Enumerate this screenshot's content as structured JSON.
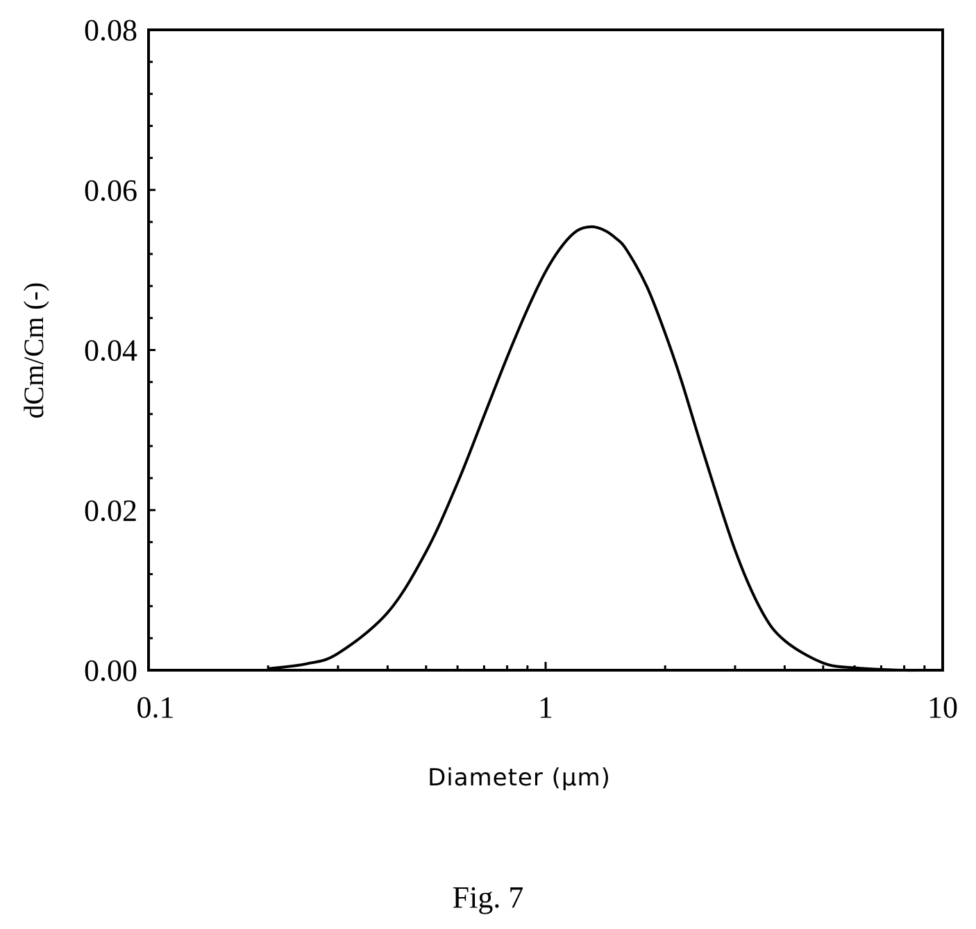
{
  "chart_data": {
    "type": "line",
    "xlabel": "Diameter (μm)",
    "ylabel": "dCm/Cm (-)",
    "xscale": "log",
    "xlim": [
      0.1,
      10
    ],
    "ylim": [
      0,
      0.08
    ],
    "grid": false,
    "legend": "none",
    "x_ticks": [
      {
        "value": 0.1,
        "label": "0.1"
      },
      {
        "value": 1,
        "label": "1"
      },
      {
        "value": 10,
        "label": "10"
      }
    ],
    "y_ticks": [
      {
        "value": 0,
        "label": "0.00"
      },
      {
        "value": 0.02,
        "label": "0.02"
      },
      {
        "value": 0.04,
        "label": "0.04"
      },
      {
        "value": 0.06,
        "label": "0.06"
      },
      {
        "value": 0.08,
        "label": "0.08"
      }
    ],
    "series": [
      {
        "color": "#000000",
        "x": [
          0.2,
          0.25,
          0.3,
          0.4,
          0.5,
          0.6,
          0.7,
          0.8,
          0.9,
          1.0,
          1.1,
          1.2,
          1.3,
          1.4,
          1.5,
          1.6,
          1.8,
          2.0,
          2.2,
          2.5,
          3.0,
          3.5,
          4.0,
          5.0,
          6.0,
          7.0,
          8.0,
          9.0
        ],
        "y": [
          0.0002,
          0.0008,
          0.0021,
          0.0072,
          0.0148,
          0.0234,
          0.0318,
          0.0391,
          0.0451,
          0.0498,
          0.053,
          0.0549,
          0.0554,
          0.055,
          0.054,
          0.0525,
          0.0479,
          0.0421,
          0.0361,
          0.0271,
          0.015,
          0.0074,
          0.0037,
          0.0009,
          0.0003,
          0.0001,
          0.0,
          0.0
        ]
      }
    ]
  },
  "caption": "Fig. 7"
}
